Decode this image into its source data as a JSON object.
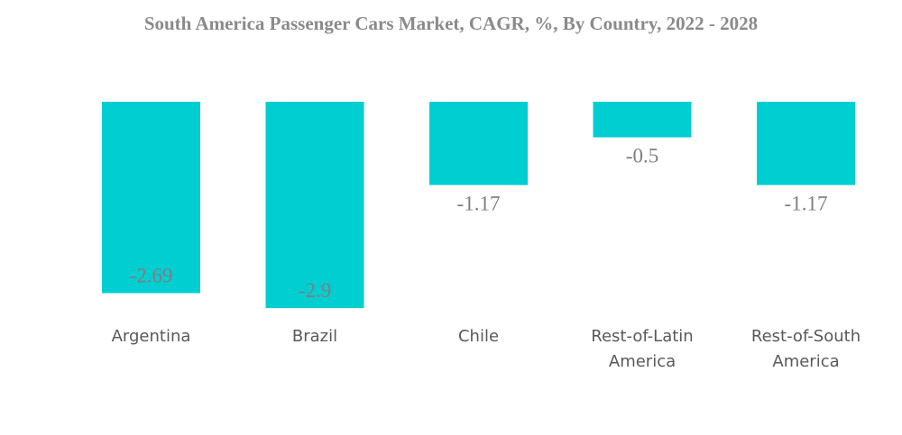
{
  "chart_data": {
    "type": "bar",
    "title": "South America Passenger Cars Market, CAGR, %, By Country, 2022 - 2028",
    "categories": [
      [
        "Argentina"
      ],
      [
        "Brazil"
      ],
      [
        "Chile"
      ],
      [
        "Rest-of-Latin",
        "America"
      ],
      [
        "Rest-of-South",
        "America"
      ]
    ],
    "values": [
      -2.69,
      -2.9,
      -1.17,
      -0.5,
      -1.17
    ],
    "value_labels": [
      "-2.69",
      "-2.9",
      "-1.17",
      "-0.5",
      "-1.17"
    ],
    "xlabel": "",
    "ylabel": "",
    "ylim": [
      -2.9,
      0
    ],
    "grid": false,
    "legend": "none",
    "bar_color": "#00CED1"
  }
}
